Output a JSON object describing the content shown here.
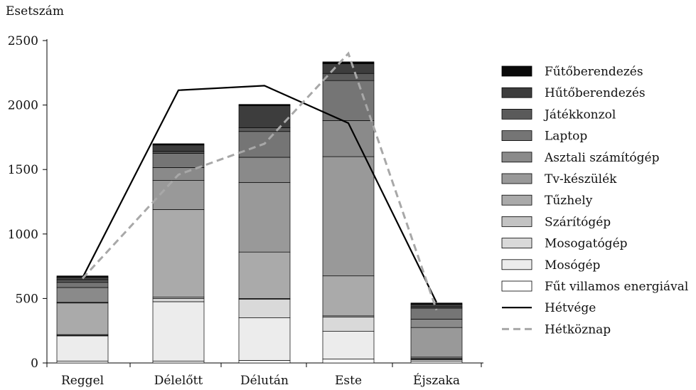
{
  "chart_data": {
    "type": "bar",
    "stacked": true,
    "ylabel": "Esetszám",
    "xlabel": "",
    "ylim": [
      0,
      2500
    ],
    "yticks": [
      0,
      500,
      1000,
      1500,
      2000,
      2500
    ],
    "categories": [
      "Reggel",
      "Délelőtt",
      "Délután",
      "Este",
      "Éjszaka"
    ],
    "grid": false,
    "legend_position": "right",
    "series": [
      {
        "name": "Fűt villamos energiával",
        "color": "#ffffff",
        "values": [
          15,
          15,
          20,
          30,
          15
        ]
      },
      {
        "name": "Mosógép",
        "color": "#ececec",
        "values": [
          195,
          460,
          330,
          215,
          10
        ]
      },
      {
        "name": "Mosogatógép",
        "color": "#d9d9d9",
        "values": [
          5,
          25,
          145,
          110,
          5
        ]
      },
      {
        "name": "Szárítógép",
        "color": "#c3c3c3",
        "values": [
          5,
          10,
          5,
          10,
          5
        ]
      },
      {
        "name": "Tűzhely",
        "color": "#aaaaaa",
        "values": [
          245,
          680,
          360,
          310,
          10
        ]
      },
      {
        "name": "Tv-készülék",
        "color": "#999999",
        "values": [
          5,
          225,
          540,
          925,
          230
        ]
      },
      {
        "name": "Asztali számítógép",
        "color": "#8a8a8a",
        "values": [
          115,
          100,
          195,
          280,
          65
        ]
      },
      {
        "name": "Laptop",
        "color": "#757575",
        "values": [
          40,
          110,
          200,
          310,
          85
        ]
      },
      {
        "name": "Játékkonzol",
        "color": "#5a5a5a",
        "values": [
          20,
          15,
          30,
          55,
          10
        ]
      },
      {
        "name": "Hűtőberendezés",
        "color": "#3d3d3d",
        "values": [
          20,
          50,
          170,
          75,
          20
        ]
      },
      {
        "name": "Fűtőberendezés",
        "color": "#0a0a0a",
        "values": [
          10,
          10,
          10,
          15,
          10
        ]
      }
    ],
    "lines": [
      {
        "name": "Hétvége",
        "style": "solid",
        "color": "#000000",
        "values": [
          660,
          2115,
          2150,
          1860,
          470
        ]
      },
      {
        "name": "Hétköznap",
        "style": "dashed",
        "color": "#a8a8a8",
        "values": [
          655,
          1460,
          1700,
          2400,
          410
        ]
      }
    ],
    "legend_order": [
      "Fűtőberendezés",
      "Hűtőberendezés",
      "Játékkonzol",
      "Laptop",
      "Asztali számítógép",
      "Tv-készülék",
      "Tűzhely",
      "Szárítógép",
      "Mosogatógép",
      "Mosógép",
      "Fűt villamos energiával",
      "Hétvége",
      "Hétköznap"
    ]
  }
}
